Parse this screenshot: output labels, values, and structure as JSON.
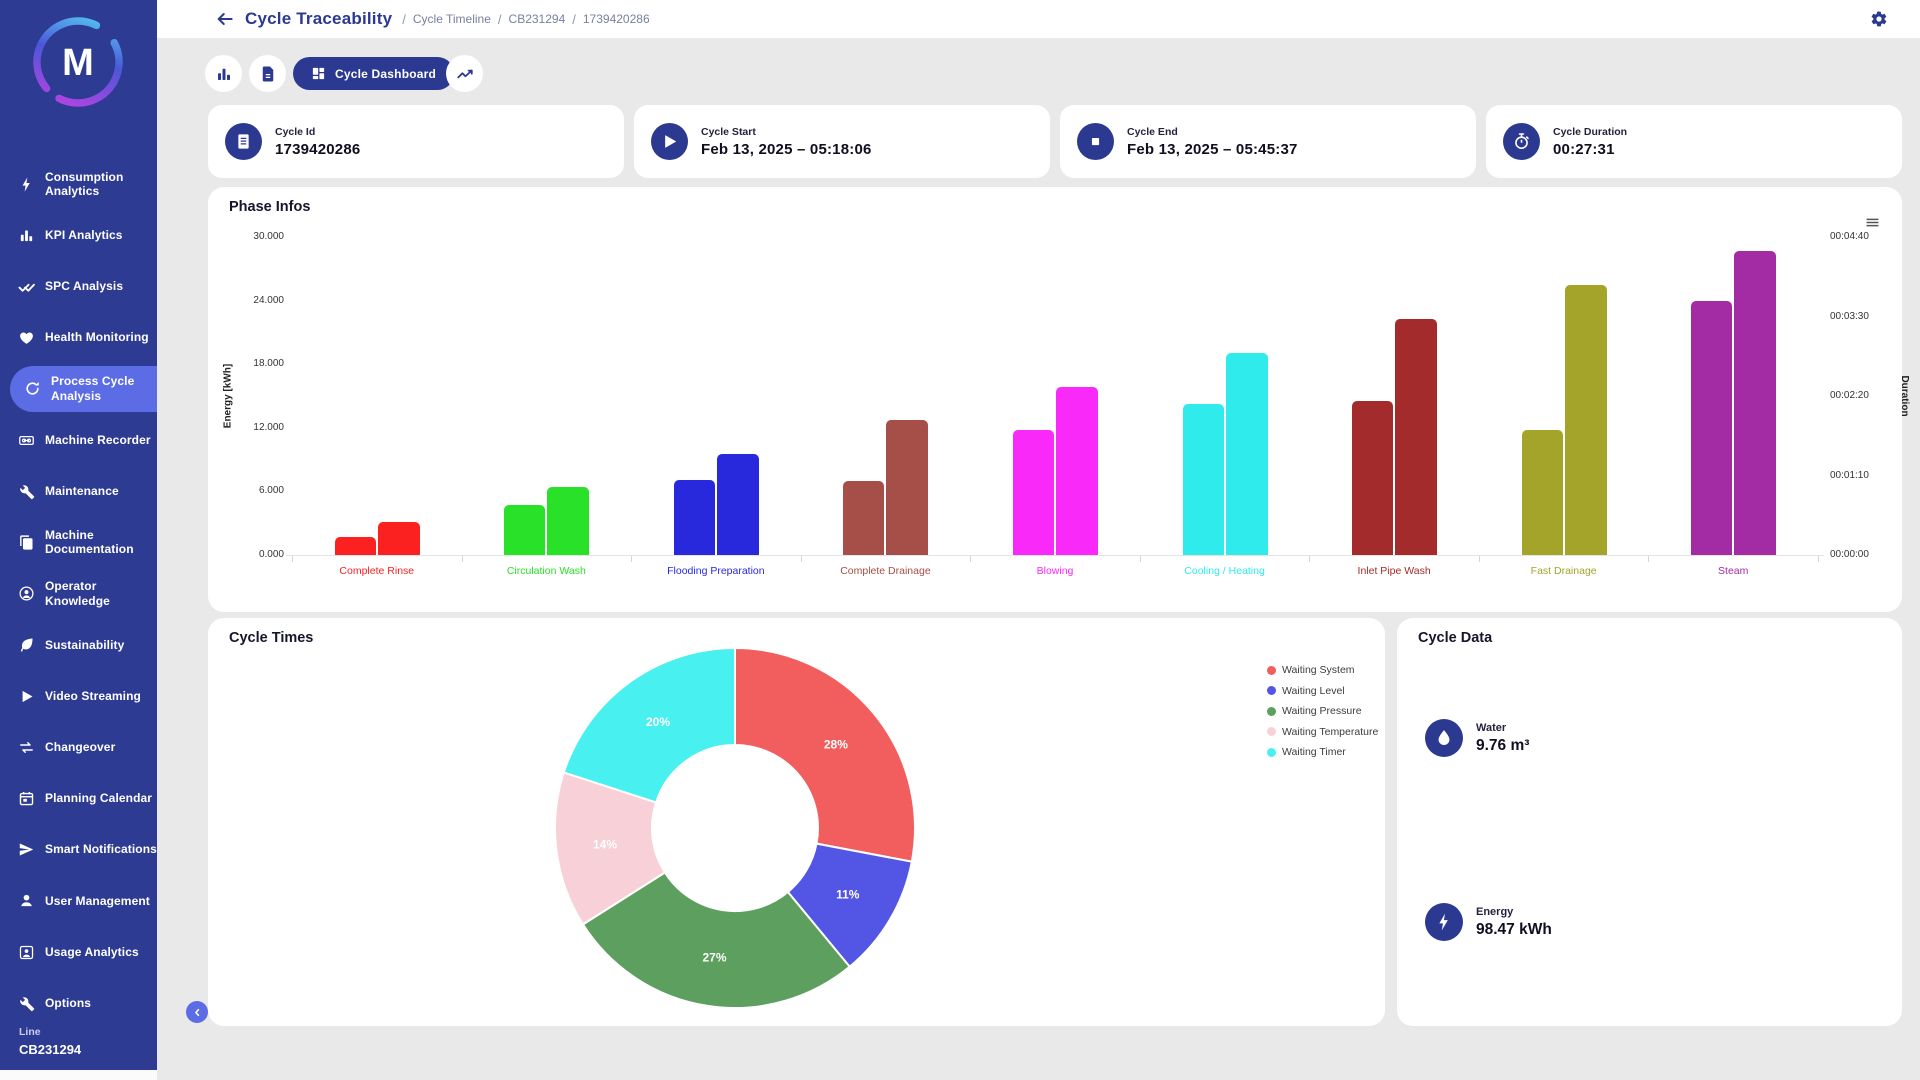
{
  "header": {
    "title": "Cycle Traceability",
    "crumbs": [
      "Cycle Timeline",
      "CB231294",
      "1739420286"
    ]
  },
  "sidebar": {
    "logo_letter": "M",
    "items": [
      {
        "label": "Consumption Analytics",
        "icon": "lightning-icon",
        "active": false
      },
      {
        "label": "KPI Analytics",
        "icon": "bar-chart-icon",
        "active": false
      },
      {
        "label": "SPC Analysis",
        "icon": "double-check-icon",
        "active": false
      },
      {
        "label": "Health Monitoring",
        "icon": "heart-icon",
        "active": false
      },
      {
        "label": "Process Cycle Analysis",
        "icon": "cycle-icon",
        "active": true
      },
      {
        "label": "Machine Recorder",
        "icon": "cassette-icon",
        "active": false
      },
      {
        "label": "Maintenance",
        "icon": "wrench-icon",
        "active": false
      },
      {
        "label": "Machine Documentation",
        "icon": "documents-icon",
        "active": false
      },
      {
        "label": "Operator Knowledge",
        "icon": "knowledge-icon",
        "active": false
      },
      {
        "label": "Sustainability",
        "icon": "leaf-icon",
        "active": false
      },
      {
        "label": "Video Streaming",
        "icon": "play-icon",
        "active": false
      },
      {
        "label": "Changeover",
        "icon": "swap-icon",
        "active": false
      },
      {
        "label": "Planning Calendar",
        "icon": "calendar-icon",
        "active": false
      },
      {
        "label": "Smart Notifications",
        "icon": "send-icon",
        "active": false
      },
      {
        "label": "User Management",
        "icon": "user-icon",
        "active": false
      },
      {
        "label": "Usage Analytics",
        "icon": "user-badge-icon",
        "active": false
      },
      {
        "label": "Options",
        "icon": "wrench-icon",
        "active": false
      }
    ],
    "footer": {
      "line_label": "Line",
      "line_value": "CB231294"
    }
  },
  "toolbar": {
    "dashboard_label": "Cycle Dashboard"
  },
  "info_cards": [
    {
      "label": "Cycle Id",
      "value": "1739420286",
      "icon": "document-icon"
    },
    {
      "label": "Cycle Start",
      "value": "Feb 13, 2025 – 05:18:06",
      "icon": "play-icon"
    },
    {
      "label": "Cycle End",
      "value": "Feb 13, 2025 – 05:45:37",
      "icon": "stop-icon"
    },
    {
      "label": "Cycle Duration",
      "value": "00:27:31",
      "icon": "stopwatch-icon"
    }
  ],
  "chart_data": [
    {
      "type": "bar",
      "title": "Phase Infos",
      "ylabel_left": "Energy [kWh]",
      "ylabel_right": "Duration",
      "left_axis": {
        "max": 30,
        "ticks": [
          "0.000",
          "6.000",
          "12.000",
          "18.000",
          "24.000",
          "30.000"
        ]
      },
      "right_axis": {
        "max_seconds": 280,
        "ticks": [
          "00:00:00",
          "00:01:10",
          "00:02:20",
          "00:03:30",
          "00:04:40"
        ]
      },
      "categories": [
        "Complete Rinse",
        "Circulation Wash",
        "Flooding Preparation",
        "Complete Drainage",
        "Blowing",
        "Cooling / Heating",
        "Inlet Pipe Wash",
        "Fast Drainage",
        "Steam"
      ],
      "colors": [
        "#fb2121",
        "#28e128",
        "#2828dc",
        "#a54f48",
        "#f92af9",
        "#30ebeb",
        "#a42b2b",
        "#a4a42a",
        "#a32ba3"
      ],
      "series": [
        {
          "name": "Energy (kWh)",
          "values": [
            1.7,
            4.7,
            7.1,
            7.0,
            11.8,
            14.2,
            14.5,
            11.8,
            24.0
          ]
        },
        {
          "name": "Duration (seconds)",
          "values": [
            29,
            60,
            89,
            119,
            148,
            178,
            208,
            238,
            268
          ]
        }
      ],
      "grid": false,
      "legend_position": "none"
    },
    {
      "type": "donut",
      "title": "Cycle Times",
      "slices": [
        {
          "label": "Waiting System",
          "percent": 28,
          "color": "#f25d5d"
        },
        {
          "label": "Waiting Level",
          "percent": 11,
          "color": "#5356e4"
        },
        {
          "label": "Waiting Pressure",
          "percent": 27,
          "color": "#5d9f5f"
        },
        {
          "label": "Waiting Temperature",
          "percent": 14,
          "color": "#f8d0d8"
        },
        {
          "label": "Waiting Timer",
          "percent": 20,
          "color": "#49f0f0"
        }
      ],
      "legend_position": "right"
    }
  ],
  "cycle_data": {
    "title": "Cycle Data",
    "metrics": [
      {
        "label": "Water",
        "value": "9.76 m³",
        "icon": "droplet-icon"
      },
      {
        "label": "Energy",
        "value": "98.47 kWh",
        "icon": "lightning-icon"
      }
    ]
  },
  "colors": {
    "primary": "#2b3990",
    "accent": "#5b6ce4",
    "sidebar_bg": "#2d3b92",
    "content_bg": "#e9e9ea"
  }
}
